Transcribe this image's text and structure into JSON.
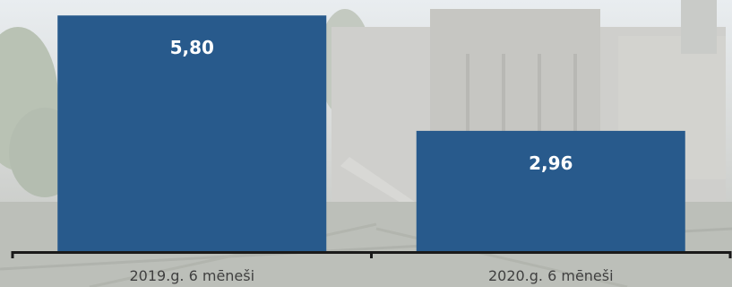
{
  "chart_data": {
    "type": "bar",
    "categories": [
      "2019.g. 6 mēneši",
      "2020.g. 6 mēneši"
    ],
    "values": [
      5.8,
      2.96
    ],
    "value_labels": [
      "5,80",
      "2,96"
    ],
    "title": "",
    "xlabel": "",
    "ylabel": "",
    "ylim": [
      0,
      5.96
    ],
    "grid": false,
    "legend": "none",
    "bar_color": "#285a8c",
    "label_color": "#ffffff",
    "axis_color": "#1a1a1a"
  }
}
